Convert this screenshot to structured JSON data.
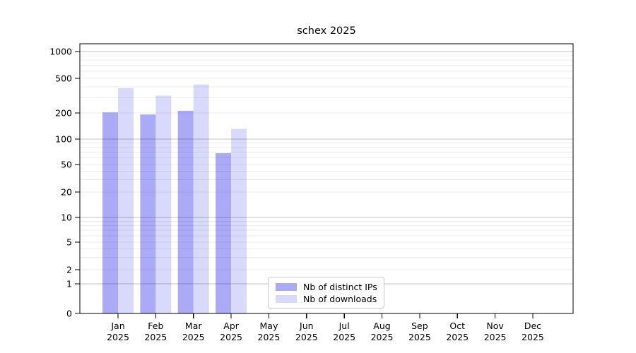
{
  "chart_data": {
    "type": "bar",
    "title": "schex 2025",
    "x_categories": [
      "Jan",
      "Feb",
      "Mar",
      "Apr",
      "May",
      "Jun",
      "Jul",
      "Aug",
      "Sep",
      "Oct",
      "Nov",
      "Dec"
    ],
    "x_year_line": "2025",
    "series": [
      {
        "name": "Nb of distinct IPs",
        "color": "#aaaaf7",
        "values": [
          203,
          192,
          212,
          68,
          0,
          0,
          0,
          0,
          0,
          0,
          0,
          0
        ]
      },
      {
        "name": "Nb of downloads",
        "color": "#d9d9fb",
        "values": [
          386,
          316,
          426,
          131,
          0,
          0,
          0,
          0,
          0,
          0,
          0,
          0
        ]
      }
    ],
    "yticks": [
      0,
      1,
      2,
      5,
      10,
      20,
      50,
      100,
      200,
      500,
      1000
    ],
    "ylim": [
      0,
      1200
    ],
    "yscale": "log-like (compressed below 5, decades 1-10-100-1000)",
    "xlabel": "",
    "ylabel": "",
    "grid": "horizontal, log minor + darker major lines",
    "legend_position": "inside-bottom-center"
  }
}
